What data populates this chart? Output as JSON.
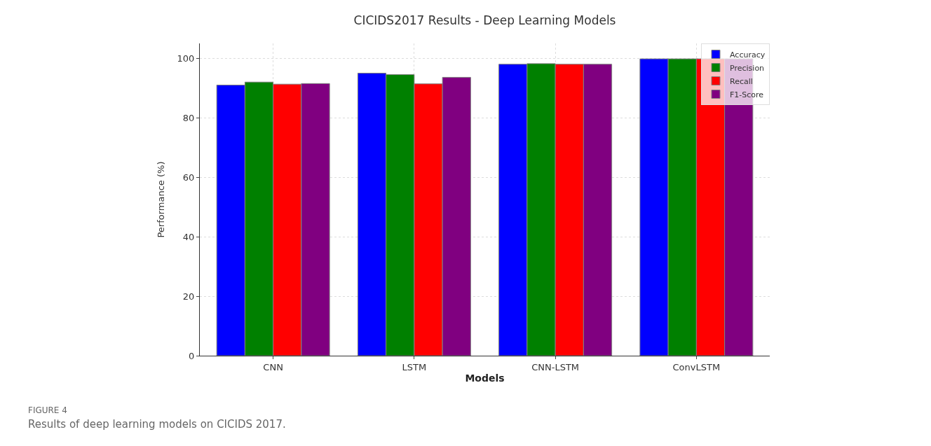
{
  "chart_data": {
    "type": "bar",
    "title": "CICIDS2017 Results - Deep Learning Models",
    "xlabel": "Models",
    "ylabel": "Performance (%)",
    "categories": [
      "CNN",
      "LSTM",
      "CNN-LSTM",
      "ConvLSTM"
    ],
    "series": [
      {
        "name": "Accuracy",
        "color": "#0000ff",
        "values": [
          91.0,
          95.0,
          98.0,
          99.8
        ]
      },
      {
        "name": "Precision",
        "color": "#008000",
        "values": [
          92.0,
          94.5,
          98.2,
          99.8
        ]
      },
      {
        "name": "Recall",
        "color": "#ff0000",
        "values": [
          91.3,
          91.4,
          98.0,
          99.8
        ]
      },
      {
        "name": "F1-Score",
        "color": "#800080",
        "values": [
          91.5,
          93.6,
          98.0,
          99.8
        ]
      }
    ],
    "ylim": [
      0,
      105
    ],
    "yticks": [
      0,
      20,
      40,
      60,
      80,
      100
    ],
    "grid": true,
    "legend": "top right",
    "annotations": [
      "FIGURE 4",
      "Results of deep learning models on CICIDS 2017."
    ]
  }
}
